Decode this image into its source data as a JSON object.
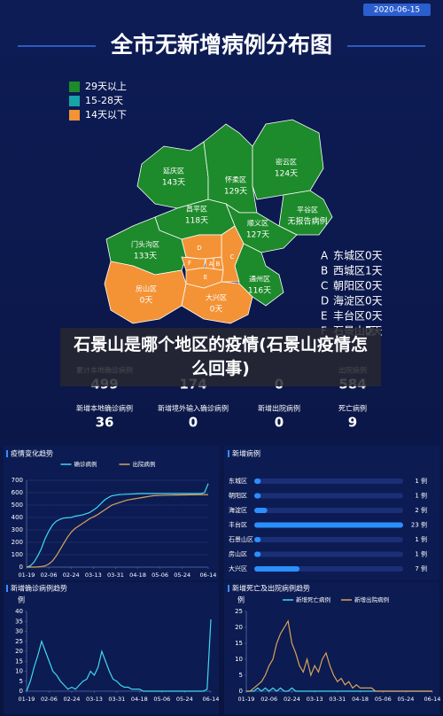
{
  "date": "2020-06-15",
  "title": "全市无新增病例分布图",
  "legend": [
    {
      "label": "29天以上",
      "color": "#1d8a2b"
    },
    {
      "label": "15-28天",
      "color": "#17a3a8"
    },
    {
      "label": "14天以下",
      "color": "#f39336"
    }
  ],
  "map": {
    "districts": [
      {
        "name": "延庆区",
        "days": "143天",
        "color": "#1d8a2b"
      },
      {
        "name": "怀柔区",
        "days": "129天",
        "color": "#1d8a2b"
      },
      {
        "name": "密云区",
        "days": "124天",
        "color": "#1d8a2b"
      },
      {
        "name": "平谷区",
        "days": "无报告病例",
        "color": "#1d8a2b"
      },
      {
        "name": "顺义区",
        "days": "127天",
        "color": "#1d8a2b"
      },
      {
        "name": "昌平区",
        "days": "118天",
        "color": "#1d8a2b"
      },
      {
        "name": "门头沟区",
        "days": "133天",
        "color": "#1d8a2b"
      },
      {
        "name": "通州区",
        "days": "116天",
        "color": "#1d8a2b"
      },
      {
        "name": "房山区",
        "days": "0天",
        "color": "#f39336"
      },
      {
        "name": "大兴区",
        "days": "0天",
        "color": "#f39336"
      }
    ],
    "key": [
      {
        "letter": "A",
        "name": "东城区",
        "days": "0天"
      },
      {
        "letter": "B",
        "name": "西城区",
        "days": "1天"
      },
      {
        "letter": "C",
        "name": "朝阳区",
        "days": "0天"
      },
      {
        "letter": "D",
        "name": "海淀区",
        "days": "0天"
      },
      {
        "letter": "E",
        "name": "丰台区",
        "days": "0天"
      },
      {
        "letter": "F",
        "name": "石景山区",
        "days": "0天"
      }
    ]
  },
  "banner": "石景山是哪个地区的疫情(石景山疫情怎么回事)",
  "stats": {
    "row1": [
      {
        "label": "累计本地确诊病例",
        "value": 499
      },
      {
        "value": 174
      },
      {
        "value": 0
      },
      {
        "label": "出院病例",
        "value": 584
      }
    ],
    "row2": [
      {
        "label": "新增本地确诊病例",
        "value": 36
      },
      {
        "label": "新增境外输入确诊病例",
        "value": 0
      },
      {
        "label": "新增出院病例",
        "value": 0
      },
      {
        "label": "死亡病例",
        "value": 9
      }
    ]
  },
  "chart_data": [
    {
      "type": "line",
      "title": "疫情变化趋势",
      "x": [
        "01-19",
        "01-22",
        "01-25",
        "01-28",
        "01-31",
        "02-03",
        "02-06",
        "02-09",
        "02-12",
        "02-15",
        "02-18",
        "02-21",
        "02-24",
        "02-27",
        "03-01",
        "03-04",
        "03-07",
        "03-10",
        "03-13",
        "03-16",
        "03-19",
        "03-22",
        "03-25",
        "03-28",
        "03-31",
        "04-03",
        "04-06",
        "04-09",
        "04-12",
        "04-15",
        "04-18",
        "04-21",
        "04-24",
        "04-27",
        "04-30",
        "05-03",
        "05-06",
        "05-09",
        "05-12",
        "05-15",
        "05-18",
        "05-21",
        "05-24",
        "05-27",
        "05-30",
        "06-02",
        "06-05",
        "06-08",
        "06-11",
        "06-14"
      ],
      "xticks": [
        "01-19",
        "02-06",
        "02-24",
        "03-13",
        "03-31",
        "04-18",
        "05-06",
        "05-24",
        "06-14"
      ],
      "ylim": [
        0,
        700
      ],
      "yticks": [
        0,
        100,
        200,
        300,
        400,
        500,
        600,
        700
      ],
      "grid": true,
      "series": [
        {
          "name": "确诊病例",
          "color": "#3fd9f2",
          "values": [
            0,
            10,
            40,
            90,
            150,
            230,
            290,
            340,
            370,
            385,
            395,
            398,
            400,
            410,
            415,
            420,
            430,
            440,
            460,
            480,
            510,
            540,
            560,
            575,
            580,
            585,
            586,
            588,
            589,
            590,
            592,
            593,
            593,
            593,
            593,
            593,
            593,
            593,
            593,
            593,
            593,
            593,
            593,
            593,
            593,
            593,
            593,
            593,
            600,
            673
          ]
        },
        {
          "name": "出院病例",
          "color": "#d9a35a",
          "values": [
            0,
            0,
            0,
            2,
            5,
            10,
            25,
            50,
            90,
            140,
            190,
            240,
            280,
            310,
            330,
            350,
            370,
            390,
            405,
            420,
            440,
            460,
            480,
            500,
            510,
            520,
            530,
            540,
            545,
            550,
            555,
            560,
            565,
            570,
            575,
            577,
            578,
            579,
            580,
            580,
            581,
            581,
            582,
            582,
            583,
            583,
            584,
            584,
            584,
            584
          ]
        }
      ]
    },
    {
      "type": "hbar",
      "title": "新增病例",
      "categories": [
        "东城区",
        "朝阳区",
        "海淀区",
        "丰台区",
        "石景山区",
        "房山区",
        "大兴区"
      ],
      "values": [
        1,
        1,
        2,
        23,
        1,
        1,
        7
      ],
      "value_labels": [
        "1 例",
        "1 例",
        "2 例",
        "23 例",
        "1 例",
        "1 例",
        "7 例"
      ],
      "color": "#2a8fff"
    },
    {
      "type": "line",
      "title": "新增确诊病例趋势",
      "y_unit": "例",
      "x": [
        "01-19",
        "01-22",
        "01-25",
        "01-28",
        "01-31",
        "02-03",
        "02-06",
        "02-09",
        "02-12",
        "02-15",
        "02-18",
        "02-21",
        "02-24",
        "02-27",
        "03-01",
        "03-04",
        "03-07",
        "03-10",
        "03-13",
        "03-16",
        "03-19",
        "03-22",
        "03-25",
        "03-28",
        "03-31",
        "04-03",
        "04-06",
        "04-09",
        "04-12",
        "04-15",
        "04-18",
        "04-21",
        "04-24",
        "04-27",
        "04-30",
        "05-03",
        "05-06",
        "05-09",
        "05-12",
        "05-15",
        "05-18",
        "05-21",
        "05-24",
        "05-27",
        "05-30",
        "06-02",
        "06-05",
        "06-08",
        "06-11",
        "06-14"
      ],
      "xticks": [
        "01-19",
        "02-06",
        "02-24",
        "03-13",
        "03-31",
        "04-18",
        "05-06",
        "05-24",
        "06-14"
      ],
      "ylim": [
        0,
        40
      ],
      "yticks": [
        0,
        5,
        10,
        15,
        20,
        25,
        30,
        35,
        40
      ],
      "grid": false,
      "series": [
        {
          "color": "#3fd9f2",
          "values": [
            0,
            5,
            12,
            18,
            25,
            20,
            15,
            10,
            8,
            5,
            3,
            1,
            2,
            1,
            3,
            5,
            6,
            10,
            8,
            12,
            20,
            15,
            10,
            6,
            5,
            3,
            2,
            2,
            1,
            1,
            1,
            0,
            0,
            0,
            0,
            0,
            0,
            0,
            0,
            0,
            0,
            0,
            0,
            0,
            0,
            0,
            0,
            0,
            1,
            36
          ]
        }
      ]
    },
    {
      "type": "line",
      "title": "新增死亡及出院病例趋势",
      "y_unit": "例",
      "x": [
        "01-19",
        "01-22",
        "01-25",
        "01-28",
        "01-31",
        "02-03",
        "02-06",
        "02-09",
        "02-12",
        "02-15",
        "02-18",
        "02-21",
        "02-24",
        "02-27",
        "03-01",
        "03-04",
        "03-07",
        "03-10",
        "03-13",
        "03-16",
        "03-19",
        "03-22",
        "03-25",
        "03-28",
        "03-31",
        "04-03",
        "04-06",
        "04-09",
        "04-12",
        "04-15",
        "04-18",
        "04-21",
        "04-24",
        "04-27",
        "04-30",
        "05-03",
        "05-06",
        "05-09",
        "05-12",
        "05-15",
        "05-18",
        "05-21",
        "05-24",
        "05-27",
        "05-30",
        "06-02",
        "06-05",
        "06-08",
        "06-11",
        "06-14"
      ],
      "xticks": [
        "01-19",
        "02-06",
        "02-24",
        "03-13",
        "03-31",
        "04-18",
        "05-06",
        "05-24",
        "06-14"
      ],
      "ylim": [
        0,
        25
      ],
      "yticks": [
        0,
        5,
        10,
        15,
        20,
        25
      ],
      "grid": false,
      "series": [
        {
          "name": "新增死亡病例",
          "color": "#3fd9f2",
          "values": [
            0,
            0,
            0,
            1,
            0,
            1,
            0,
            1,
            0,
            1,
            0,
            0,
            1,
            0,
            0,
            0,
            0,
            0,
            0,
            0,
            0,
            0,
            0,
            0,
            0,
            0,
            0,
            0,
            0,
            0,
            0,
            0,
            0,
            0,
            0,
            0,
            0,
            0,
            0,
            0,
            0,
            0,
            0,
            0,
            0,
            0,
            0,
            0,
            0,
            0
          ]
        },
        {
          "name": "新增出院病例",
          "color": "#d9a35a",
          "values": [
            0,
            0,
            1,
            2,
            3,
            5,
            8,
            10,
            15,
            18,
            20,
            22,
            15,
            12,
            8,
            6,
            10,
            5,
            8,
            6,
            10,
            12,
            8,
            5,
            3,
            4,
            2,
            3,
            1,
            2,
            1,
            1,
            1,
            1,
            0,
            0,
            0,
            0,
            0,
            0,
            0,
            0,
            0,
            0,
            0,
            0,
            0,
            0,
            0,
            0
          ]
        }
      ]
    }
  ]
}
